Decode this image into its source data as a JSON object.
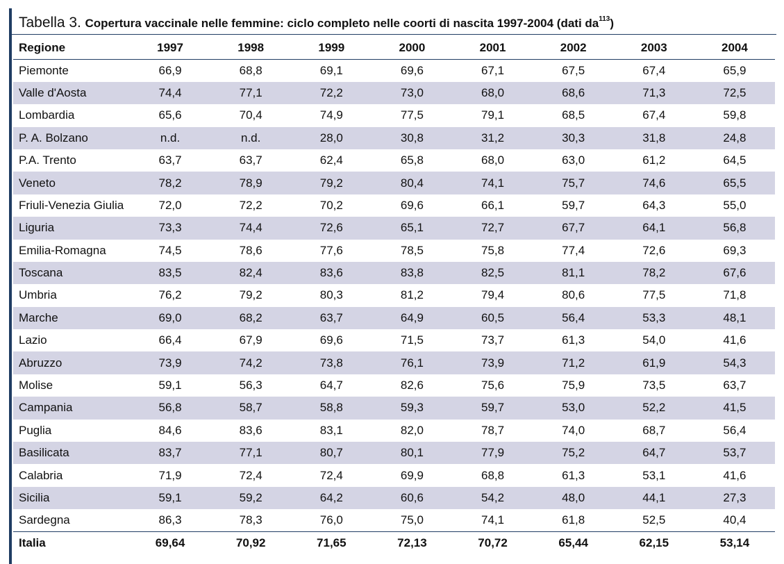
{
  "title": {
    "lead": "Tabella 3.",
    "text": "Copertura vaccinale nelle femmine: ciclo completo nelle coorti di nascita 1997-2004 (dati da",
    "ref": "113",
    "close": ")"
  },
  "header": [
    "Regione",
    "1997",
    "1998",
    "1999",
    "2000",
    "2001",
    "2002",
    "2003",
    "2004"
  ],
  "rows": [
    [
      "Piemonte",
      "66,9",
      "68,8",
      "69,1",
      "69,6",
      "67,1",
      "67,5",
      "67,4",
      "65,9"
    ],
    [
      "Valle d'Aosta",
      "74,4",
      "77,1",
      "72,2",
      "73,0",
      "68,0",
      "68,6",
      "71,3",
      "72,5"
    ],
    [
      "Lombardia",
      "65,6",
      "70,4",
      "74,9",
      "77,5",
      "79,1",
      "68,5",
      "67,4",
      "59,8"
    ],
    [
      "P. A. Bolzano",
      "n.d.",
      "n.d.",
      "28,0",
      "30,8",
      "31,2",
      "30,3",
      "31,8",
      "24,8"
    ],
    [
      "P.A. Trento",
      "63,7",
      "63,7",
      "62,4",
      "65,8",
      "68,0",
      "63,0",
      "61,2",
      "64,5"
    ],
    [
      "Veneto",
      "78,2",
      "78,9",
      "79,2",
      "80,4",
      "74,1",
      "75,7",
      "74,6",
      "65,5"
    ],
    [
      "Friuli-Venezia Giulia",
      "72,0",
      "72,2",
      "70,2",
      "69,6",
      "66,1",
      "59,7",
      "64,3",
      "55,0"
    ],
    [
      "Liguria",
      "73,3",
      "74,4",
      "72,6",
      "65,1",
      "72,7",
      "67,7",
      "64,1",
      "56,8"
    ],
    [
      "Emilia-Romagna",
      "74,5",
      "78,6",
      "77,6",
      "78,5",
      "75,8",
      "77,4",
      "72,6",
      "69,3"
    ],
    [
      "Toscana",
      "83,5",
      "82,4",
      "83,6",
      "83,8",
      "82,5",
      "81,1",
      "78,2",
      "67,6"
    ],
    [
      "Umbria",
      "76,2",
      "79,2",
      "80,3",
      "81,2",
      "79,4",
      "80,6",
      "77,5",
      "71,8"
    ],
    [
      "Marche",
      "69,0",
      "68,2",
      "63,7",
      "64,9",
      "60,5",
      "56,4",
      "53,3",
      "48,1"
    ],
    [
      "Lazio",
      "66,4",
      "67,9",
      "69,6",
      "71,5",
      "73,7",
      "61,3",
      "54,0",
      "41,6"
    ],
    [
      "Abruzzo",
      "73,9",
      "74,2",
      "73,8",
      "76,1",
      "73,9",
      "71,2",
      "61,9",
      "54,3"
    ],
    [
      "Molise",
      "59,1",
      "56,3",
      "64,7",
      "82,6",
      "75,6",
      "75,9",
      "73,5",
      "63,7"
    ],
    [
      "Campania",
      "56,8",
      "58,7",
      "58,8",
      "59,3",
      "59,7",
      "53,0",
      "52,2",
      "41,5"
    ],
    [
      "Puglia",
      "84,6",
      "83,6",
      "83,1",
      "82,0",
      "78,7",
      "74,0",
      "68,7",
      "56,4"
    ],
    [
      "Basilicata",
      "83,7",
      "77,1",
      "80,7",
      "80,1",
      "77,9",
      "75,2",
      "64,7",
      "53,7"
    ],
    [
      "Calabria",
      "71,9",
      "72,4",
      "72,4",
      "69,9",
      "68,8",
      "61,3",
      "53,1",
      "41,6"
    ],
    [
      "Sicilia",
      "59,1",
      "59,2",
      "64,2",
      "60,6",
      "54,2",
      "48,0",
      "44,1",
      "27,3"
    ],
    [
      "Sardegna",
      "86,3",
      "78,3",
      "76,0",
      "75,0",
      "74,1",
      "61,8",
      "52,5",
      "40,4"
    ]
  ],
  "total": [
    "Italia",
    "69,64",
    "70,92",
    "71,65",
    "72,13",
    "70,72",
    "65,44",
    "62,15",
    "53,14"
  ]
}
